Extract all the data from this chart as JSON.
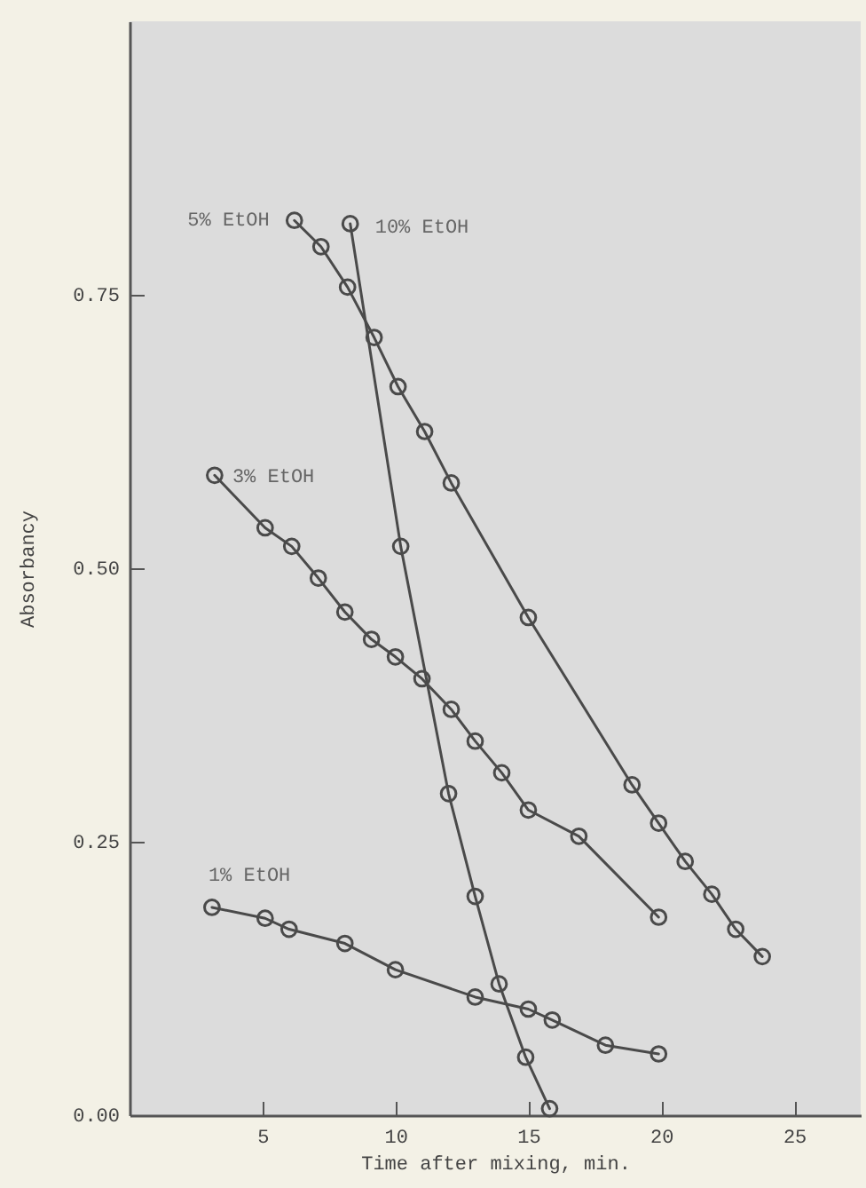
{
  "chart_data": {
    "type": "line",
    "xlabel": "Time after mixing, min.",
    "ylabel": "Absorbancy",
    "xlim": [
      0,
      27.5
    ],
    "ylim": [
      0,
      1.0
    ],
    "xticks": [
      5,
      10,
      15,
      20,
      25
    ],
    "yticks": [
      {
        "value": 0,
        "label": "0.00"
      },
      {
        "value": 0.25,
        "label": "0.25"
      },
      {
        "value": 0.5,
        "label": "0.50"
      },
      {
        "value": 0.75,
        "label": "0.75"
      }
    ],
    "marker": "circle",
    "line_style": "solid",
    "series": [
      {
        "name": "10% EtOH",
        "color": "#4a4a4a",
        "x": [
          8.3,
          10.2,
          12.0,
          13.0,
          13.9,
          14.9,
          15.8
        ],
        "values": [
          0.815,
          0.52,
          0.294,
          0.2,
          0.12,
          0.053,
          0.006
        ]
      },
      {
        "name": "5% EtOH",
        "color": "#4a4a4a",
        "x": [
          6.2,
          7.2,
          8.2,
          9.2,
          10.1,
          11.1,
          12.1,
          15.0,
          18.9,
          19.9,
          20.9,
          21.9,
          22.8,
          23.8
        ],
        "values": [
          0.818,
          0.794,
          0.757,
          0.711,
          0.666,
          0.625,
          0.578,
          0.455,
          0.302,
          0.267,
          0.232,
          0.202,
          0.17,
          0.145
        ]
      },
      {
        "name": "3% EtOH",
        "color": "#4a4a4a",
        "x": [
          3.2,
          5.1,
          6.1,
          7.1,
          8.1,
          9.1,
          10.0,
          11.0,
          12.1,
          13.0,
          14.0,
          15.0,
          16.9,
          19.9
        ],
        "values": [
          0.585,
          0.537,
          0.52,
          0.491,
          0.46,
          0.435,
          0.419,
          0.399,
          0.371,
          0.342,
          0.313,
          0.279,
          0.255,
          0.181
        ]
      },
      {
        "name": "1% EtOH",
        "color": "#4a4a4a",
        "x": [
          3.1,
          5.1,
          6.0,
          8.1,
          10.0,
          13.0,
          15.0,
          15.9,
          17.9,
          19.9
        ],
        "values": [
          0.19,
          0.18,
          0.17,
          0.157,
          0.133,
          0.108,
          0.097,
          0.087,
          0.064,
          0.056
        ]
      }
    ]
  }
}
